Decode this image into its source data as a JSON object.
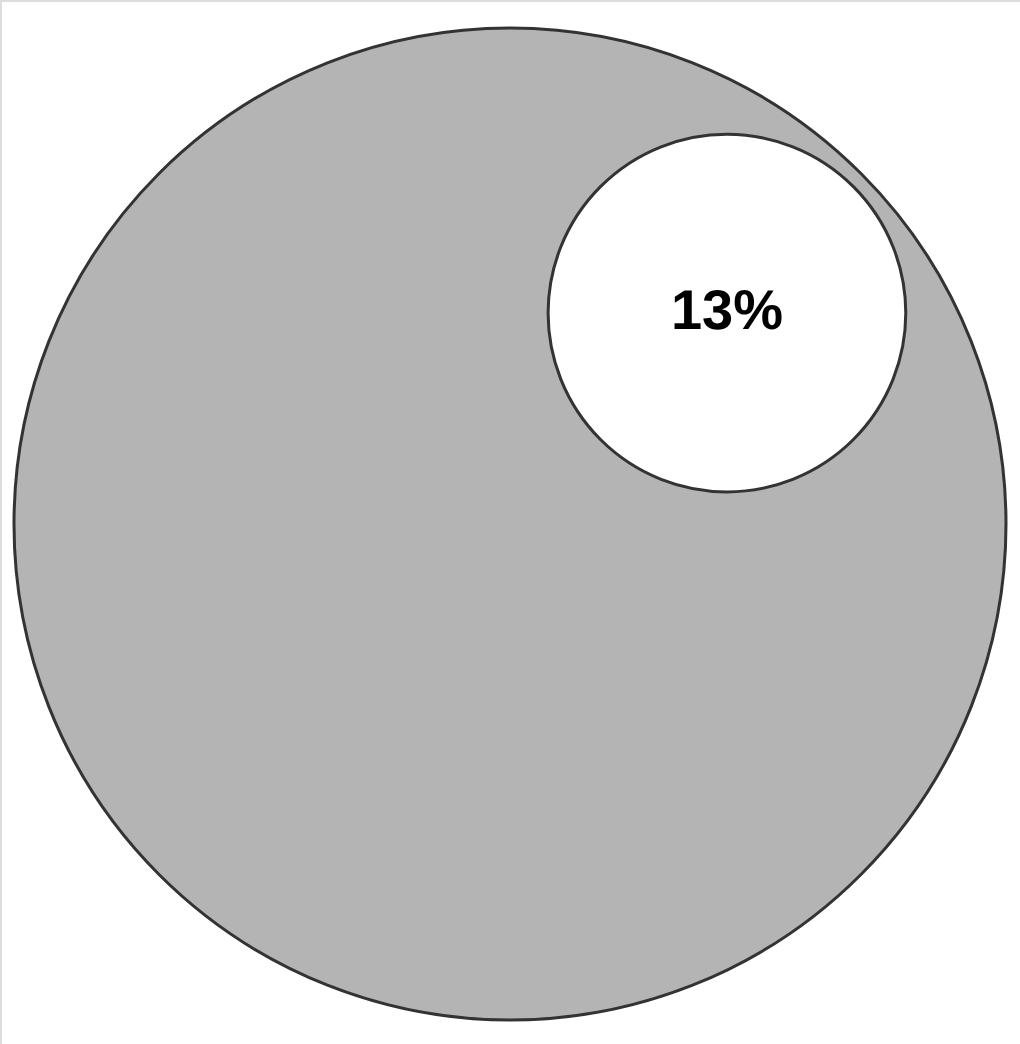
{
  "chart_data": {
    "type": "other",
    "categories": [
      null
    ],
    "values": [
      13
    ],
    "value_labels": [
      "13%"
    ],
    "colors": [
      "#ffffff"
    ]
  }
}
